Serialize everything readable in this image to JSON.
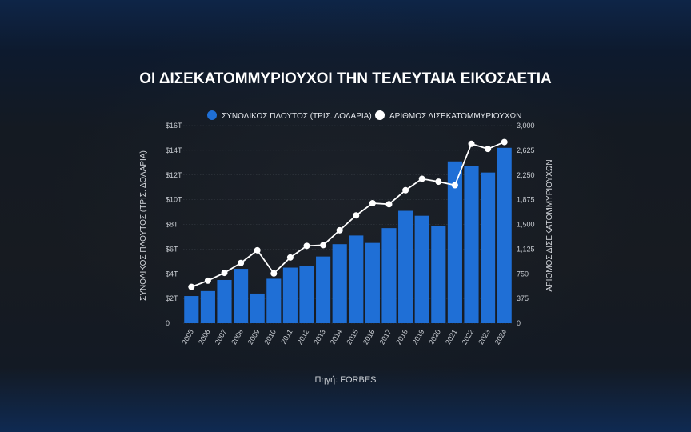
{
  "chart_data": {
    "type": "bar",
    "title": "ΟΙ ΔΙΣΕΚΑΤΟΜΜΥΡΙΟΥΧΟΙ ΤΗΝ ΤΕΛΕΥΤΑΙΑ ΕΙΚΟΣΑΕΤΙΑ",
    "categories": [
      "2005",
      "2006",
      "2007",
      "2008",
      "2009",
      "2010",
      "2011",
      "2012",
      "2013",
      "2014",
      "2015",
      "2016",
      "2017",
      "2018",
      "2019",
      "2020",
      "2021",
      "2022",
      "2023",
      "2024"
    ],
    "series": [
      {
        "name": "ΣΥΝΟΛΙΚΟΣ ΠΛΟΥΤΟΣ (ΤΡΙΣ. ΔΟΛΑΡΙΑ)",
        "type": "bar",
        "axis": "left",
        "color": "#1f6fd6",
        "values": [
          2.2,
          2.6,
          3.5,
          4.4,
          2.4,
          3.6,
          4.5,
          4.6,
          5.4,
          6.4,
          7.1,
          6.5,
          7.7,
          9.1,
          8.7,
          7.9,
          13.1,
          12.7,
          12.2,
          14.2
        ]
      },
      {
        "name": "ΑΡΙΘΜΟΣ ΔΙΣΕΚΑΤΟΜΜΥΡΙΟΥΧΩΝ",
        "type": "line",
        "axis": "right",
        "color": "#ffffff",
        "values": [
          551,
          646,
          764,
          914,
          1107,
          756,
          998,
          1174,
          1185,
          1411,
          1637,
          1822,
          1806,
          2019,
          2192,
          2149,
          2095,
          2723,
          2646,
          2750
        ]
      }
    ],
    "left_axis": {
      "label": "ΣΥΝΟΛΙΚΟΣ ΠΛΟΥΤΟΣ (ΤΡΙΣ. ΔΟΛΑΡΙΑ)",
      "ticks": [
        "0",
        "$2T",
        "$4T",
        "$6T",
        "$8T",
        "$10T",
        "$12T",
        "$14T",
        "$16T"
      ],
      "ylim": [
        0,
        16
      ]
    },
    "right_axis": {
      "label": "ΑΡΙΘΜΟΣ ΔΙΣΕΚΑΤΟΜΜΥΡΙΟΥΧΩΝ",
      "ticks": [
        "0",
        "375",
        "750",
        "1,125",
        "1,500",
        "1,875",
        "2,250",
        "2,625",
        "3,000"
      ],
      "ylim": [
        0,
        3000
      ]
    },
    "legend_position": "top",
    "grid": true,
    "source": "Πηγή: FORBES"
  }
}
